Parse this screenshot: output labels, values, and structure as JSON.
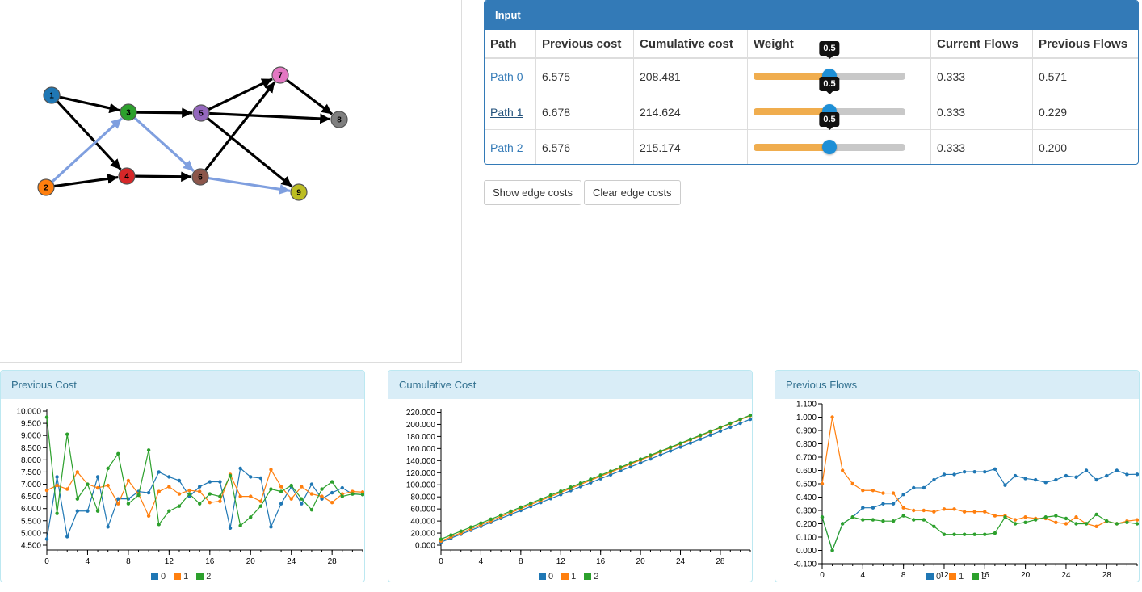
{
  "graph": {
    "nodes": [
      {
        "id": "1",
        "color": "#1f77b4"
      },
      {
        "id": "2",
        "color": "#ff7f0e"
      },
      {
        "id": "3",
        "color": "#2ca02c"
      },
      {
        "id": "4",
        "color": "#d62728"
      },
      {
        "id": "5",
        "color": "#9467bd"
      },
      {
        "id": "6",
        "color": "#8c564b"
      },
      {
        "id": "7",
        "color": "#e377c2"
      },
      {
        "id": "8",
        "color": "#7f7f7f"
      },
      {
        "id": "9",
        "color": "#bcbd22"
      }
    ],
    "edges": [
      [
        "1",
        "3",
        "default"
      ],
      [
        "1",
        "4",
        "default"
      ],
      [
        "2",
        "4",
        "default"
      ],
      [
        "2",
        "3",
        "highlighted"
      ],
      [
        "3",
        "5",
        "default"
      ],
      [
        "3",
        "6",
        "highlighted"
      ],
      [
        "4",
        "6",
        "default"
      ],
      [
        "5",
        "7",
        "default"
      ],
      [
        "5",
        "8",
        "default"
      ],
      [
        "5",
        "9",
        "default"
      ],
      [
        "6",
        "7",
        "default"
      ],
      [
        "6",
        "9",
        "highlighted"
      ],
      [
        "7",
        "8",
        "default"
      ]
    ],
    "edge_color": "#000000",
    "highlight_color": "#7f9fdf"
  },
  "input_panel": {
    "title": "Input",
    "headers": [
      "Path",
      "Previous cost",
      "Cumulative cost",
      "Weight",
      "Current Flows",
      "Previous Flows"
    ],
    "rows": [
      {
        "path": "Path 0",
        "prev_cost": "6.575",
        "cum_cost": "208.481",
        "weight": 0.5,
        "weight_label": "0.5",
        "current_flow": "0.333",
        "prev_flow": "0.571",
        "hover": false
      },
      {
        "path": "Path 1",
        "prev_cost": "6.678",
        "cum_cost": "214.624",
        "weight": 0.5,
        "weight_label": "0.5",
        "current_flow": "0.333",
        "prev_flow": "0.229",
        "hover": true
      },
      {
        "path": "Path 2",
        "prev_cost": "6.576",
        "cum_cost": "215.174",
        "weight": 0.5,
        "weight_label": "0.5",
        "current_flow": "0.333",
        "prev_flow": "0.200",
        "hover": false
      }
    ]
  },
  "buttons": {
    "show_edge_costs": "Show edge costs",
    "clear_edge_costs": "Clear edge costs"
  },
  "series_colors": [
    "#1f77b4",
    "#ff7f0e",
    "#2ca02c"
  ],
  "chart_data": [
    {
      "type": "line",
      "title": "Previous Cost",
      "xlabel": "",
      "ylabel": "",
      "xlim": [
        0,
        31
      ],
      "ylim": [
        4.3,
        10.1
      ],
      "xticks": [
        "0",
        "4",
        "8",
        "12",
        "16",
        "20",
        "24",
        "28"
      ],
      "yticks": [
        "4.500",
        "5.000",
        "5.500",
        "6.000",
        "6.500",
        "7.000",
        "7.500",
        "8.000",
        "8.500",
        "9.000",
        "9.500",
        "10.000"
      ],
      "legend": [
        "0",
        "1",
        "2"
      ],
      "legend_position": "bottom",
      "series": [
        {
          "name": "0",
          "x": [
            0,
            1,
            2,
            3,
            4,
            5,
            6,
            7,
            8,
            9,
            10,
            11,
            12,
            13,
            14,
            15,
            16,
            17,
            18,
            19,
            20,
            21,
            22,
            23,
            24,
            25,
            26,
            27,
            28,
            29,
            30,
            31
          ],
          "values": [
            4.75,
            7.3,
            4.85,
            5.9,
            5.9,
            7.3,
            5.25,
            6.4,
            6.4,
            6.7,
            6.65,
            7.5,
            7.3,
            7.15,
            6.5,
            6.9,
            7.1,
            7.1,
            5.2,
            7.65,
            7.3,
            7.25,
            5.25,
            6.2,
            6.9,
            6.2,
            7.0,
            6.4,
            6.65,
            6.85,
            6.6,
            6.575
          ]
        },
        {
          "name": "1",
          "x": [
            0,
            1,
            2,
            3,
            4,
            5,
            6,
            7,
            8,
            9,
            10,
            11,
            12,
            13,
            14,
            15,
            16,
            17,
            18,
            19,
            20,
            21,
            22,
            23,
            24,
            25,
            26,
            27,
            28,
            29,
            30,
            31
          ],
          "values": [
            6.75,
            6.95,
            6.8,
            7.5,
            7.0,
            6.85,
            6.95,
            6.2,
            7.15,
            6.6,
            5.7,
            6.7,
            6.9,
            6.6,
            6.75,
            6.7,
            6.25,
            6.3,
            7.4,
            6.5,
            6.5,
            6.3,
            7.6,
            6.9,
            6.4,
            6.9,
            6.6,
            6.5,
            6.25,
            6.6,
            6.7,
            6.678
          ]
        },
        {
          "name": "2",
          "x": [
            0,
            1,
            2,
            3,
            4,
            5,
            6,
            7,
            8,
            9,
            10,
            11,
            12,
            13,
            14,
            15,
            16,
            17,
            18,
            19,
            20,
            21,
            22,
            23,
            24,
            25,
            26,
            27,
            28,
            29,
            30,
            31
          ],
          "values": [
            9.75,
            5.8,
            9.05,
            6.4,
            7.0,
            5.9,
            7.65,
            8.25,
            6.2,
            6.55,
            8.4,
            5.35,
            5.9,
            6.1,
            6.6,
            6.2,
            6.6,
            6.5,
            7.35,
            5.3,
            5.65,
            6.1,
            6.8,
            6.7,
            6.95,
            6.4,
            5.95,
            6.8,
            7.1,
            6.5,
            6.6,
            6.576
          ]
        }
      ]
    },
    {
      "type": "line",
      "title": "Cumulative Cost",
      "xlabel": "",
      "ylabel": "",
      "xlim": [
        0,
        31
      ],
      "ylim": [
        -8000,
        226000
      ],
      "xticks": [
        "0",
        "4",
        "8",
        "12",
        "16",
        "20",
        "24",
        "28"
      ],
      "yticks": [
        "0.000",
        "20.000",
        "40.000",
        "60.000",
        "80.000",
        "100.000",
        "120.000",
        "140.000",
        "160.000",
        "180.000",
        "200.000",
        "220.000"
      ],
      "legend": [
        "0",
        "1",
        "2"
      ],
      "legend_position": "bottom",
      "series": [
        {
          "name": "0",
          "x": [
            0,
            31
          ],
          "values": [
            5000,
            208481
          ],
          "markers_every": 1
        },
        {
          "name": "1",
          "x": [
            0,
            31
          ],
          "values": [
            7000,
            214624
          ],
          "markers_every": 1
        },
        {
          "name": "2",
          "x": [
            0,
            31
          ],
          "values": [
            10000,
            215174
          ],
          "markers_every": 1
        }
      ]
    },
    {
      "type": "line",
      "title": "Previous Flows",
      "xlabel": "",
      "ylabel": "",
      "xlim": [
        0,
        31
      ],
      "ylim": [
        -0.1,
        1.1
      ],
      "xticks": [
        "0",
        "4",
        "8",
        "12",
        "16",
        "20",
        "24",
        "28"
      ],
      "yticks": [
        "-0.100",
        "0.000",
        "0.100",
        "0.200",
        "0.300",
        "0.400",
        "0.500",
        "0.600",
        "0.700",
        "0.800",
        "0.900",
        "1.000",
        "1.100"
      ],
      "legend": [
        "0",
        "1",
        "2"
      ],
      "legend_position": "bottom",
      "series": [
        {
          "name": "0",
          "x": [
            0,
            1,
            2,
            3,
            4,
            5,
            6,
            7,
            8,
            9,
            10,
            11,
            12,
            13,
            14,
            15,
            16,
            17,
            18,
            19,
            20,
            21,
            22,
            23,
            24,
            25,
            26,
            27,
            28,
            29,
            30,
            31
          ],
          "values": [
            0.25,
            0.0,
            0.2,
            0.25,
            0.32,
            0.32,
            0.35,
            0.35,
            0.42,
            0.47,
            0.47,
            0.53,
            0.57,
            0.57,
            0.59,
            0.59,
            0.59,
            0.61,
            0.49,
            0.56,
            0.54,
            0.53,
            0.51,
            0.53,
            0.56,
            0.55,
            0.6,
            0.53,
            0.56,
            0.6,
            0.57,
            0.571
          ]
        },
        {
          "name": "1",
          "x": [
            0,
            1,
            2,
            3,
            4,
            5,
            6,
            7,
            8,
            9,
            10,
            11,
            12,
            13,
            14,
            15,
            16,
            17,
            18,
            19,
            20,
            21,
            22,
            23,
            24,
            25,
            26,
            27,
            28,
            29,
            30,
            31
          ],
          "values": [
            0.5,
            1.0,
            0.6,
            0.5,
            0.45,
            0.45,
            0.43,
            0.43,
            0.32,
            0.3,
            0.3,
            0.29,
            0.31,
            0.31,
            0.29,
            0.29,
            0.29,
            0.26,
            0.26,
            0.23,
            0.25,
            0.24,
            0.24,
            0.21,
            0.2,
            0.25,
            0.2,
            0.18,
            0.22,
            0.2,
            0.22,
            0.229
          ]
        },
        {
          "name": "2",
          "x": [
            0,
            1,
            2,
            3,
            4,
            5,
            6,
            7,
            8,
            9,
            10,
            11,
            12,
            13,
            14,
            15,
            16,
            17,
            18,
            19,
            20,
            21,
            22,
            23,
            24,
            25,
            26,
            27,
            28,
            29,
            30,
            31
          ],
          "values": [
            0.25,
            0.0,
            0.2,
            0.25,
            0.23,
            0.23,
            0.22,
            0.22,
            0.26,
            0.23,
            0.23,
            0.18,
            0.12,
            0.12,
            0.12,
            0.12,
            0.12,
            0.13,
            0.25,
            0.2,
            0.21,
            0.23,
            0.25,
            0.26,
            0.24,
            0.2,
            0.2,
            0.27,
            0.22,
            0.2,
            0.21,
            0.2
          ]
        }
      ]
    }
  ]
}
